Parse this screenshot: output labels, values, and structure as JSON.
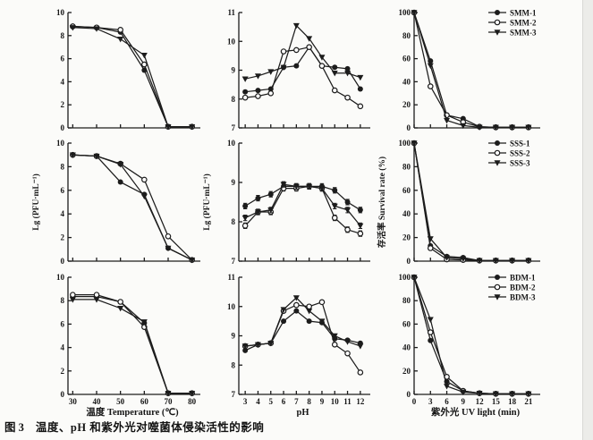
{
  "figure": {
    "caption": {
      "label": "图 3",
      "text": "温度、pH 和紫外光对噬菌体侵染活性的影响"
    }
  },
  "style": {
    "ink": "#1c1c1c",
    "paper": "#fbfbf9",
    "edge": "#ecece9"
  },
  "chart_data": [
    {
      "id": "smm-temperature",
      "type": "line",
      "row": 0,
      "col": 0,
      "x": [
        30,
        40,
        50,
        60,
        70,
        80
      ],
      "xlim": [
        28,
        82
      ],
      "ylim": [
        0,
        10
      ],
      "yticks": [
        0,
        2,
        4,
        6,
        8,
        10
      ],
      "xticks": [
        30,
        40,
        50,
        60,
        70,
        80
      ],
      "show_xtick_labels": false,
      "xlabel": "",
      "ylabel": "",
      "series": [
        {
          "name": "SMM-1",
          "marker": "filled-circle",
          "values": [
            8.8,
            8.7,
            8.3,
            5.0,
            0.1,
            0.1
          ]
        },
        {
          "name": "SMM-2",
          "marker": "open-circle",
          "values": [
            8.8,
            8.7,
            8.5,
            5.5,
            0.1,
            0.1
          ]
        },
        {
          "name": "SMM-3",
          "marker": "filled-triangle",
          "values": [
            8.7,
            8.6,
            7.7,
            6.3,
            0.1,
            0.1
          ]
        }
      ],
      "legend": false
    },
    {
      "id": "smm-ph",
      "type": "line",
      "row": 0,
      "col": 1,
      "x": [
        3,
        4,
        5,
        6,
        7,
        8,
        9,
        10,
        11,
        12
      ],
      "xlim": [
        2.5,
        12.5
      ],
      "ylim": [
        7,
        11
      ],
      "yticks": [
        7,
        8,
        9,
        10,
        11
      ],
      "xticks": [
        3,
        4,
        5,
        6,
        7,
        8,
        9,
        10,
        11,
        12
      ],
      "show_xtick_labels": false,
      "xlabel": "",
      "ylabel": "",
      "series": [
        {
          "name": "SMM-1",
          "marker": "filled-circle",
          "values": [
            8.25,
            8.3,
            8.35,
            9.1,
            9.15,
            9.8,
            9.15,
            9.1,
            9.05,
            8.35
          ]
        },
        {
          "name": "SMM-2",
          "marker": "open-circle",
          "values": [
            8.05,
            8.1,
            8.2,
            9.65,
            9.7,
            9.8,
            9.15,
            8.3,
            8.05,
            7.75
          ]
        },
        {
          "name": "SMM-3",
          "marker": "filled-triangle",
          "values": [
            8.7,
            8.8,
            8.95,
            9.1,
            10.55,
            10.1,
            9.45,
            8.9,
            8.9,
            8.75
          ]
        }
      ],
      "legend": false
    },
    {
      "id": "smm-uv",
      "type": "line",
      "row": 0,
      "col": 2,
      "x": [
        0,
        3,
        6,
        9,
        12,
        15,
        18,
        21
      ],
      "xlim": [
        0,
        22.5
      ],
      "ylim": [
        0,
        100
      ],
      "yticks": [
        0,
        20,
        40,
        60,
        80,
        100
      ],
      "xticks": [
        0,
        3,
        6,
        9,
        12,
        15,
        18,
        21
      ],
      "show_xtick_labels": false,
      "xlabel": "",
      "ylabel": "",
      "series": [
        {
          "name": "SMM-1",
          "marker": "filled-circle",
          "values": [
            100,
            58,
            11,
            8,
            1,
            0.5,
            0.5,
            0.5
          ]
        },
        {
          "name": "SMM-2",
          "marker": "open-circle",
          "values": [
            100,
            36,
            11,
            5,
            1,
            0.5,
            0.5,
            0.5
          ]
        },
        {
          "name": "SMM-3",
          "marker": "filled-triangle",
          "values": [
            100,
            54,
            6.5,
            2,
            0.5,
            0.5,
            0.5,
            0.5
          ]
        }
      ],
      "legend": true
    },
    {
      "id": "sss-temperature",
      "type": "line",
      "row": 1,
      "col": 0,
      "x": [
        30,
        40,
        50,
        60,
        70,
        80
      ],
      "xlim": [
        28,
        82
      ],
      "ylim": [
        0,
        10
      ],
      "yticks": [
        0,
        2,
        4,
        6,
        8,
        10
      ],
      "xticks": [
        30,
        40,
        50,
        60,
        70,
        80
      ],
      "show_xtick_labels": false,
      "xlabel": "",
      "ylabel": "Lg (PFU·mL⁻¹)",
      "series": [
        {
          "name": "SSS-1",
          "marker": "filled-circle",
          "values": [
            9.0,
            8.9,
            6.7,
            5.65,
            1.1,
            0.1
          ]
        },
        {
          "name": "SSS-2",
          "marker": "open-circle",
          "values": [
            9.0,
            8.9,
            8.25,
            6.9,
            2.1,
            0.1
          ]
        },
        {
          "name": "SSS-3",
          "marker": "filled-triangle",
          "values": [
            9.0,
            8.9,
            8.2,
            5.5,
            1.1,
            0.1
          ]
        }
      ],
      "legend": false
    },
    {
      "id": "sss-ph",
      "type": "line",
      "row": 1,
      "col": 1,
      "x": [
        3,
        4,
        5,
        6,
        7,
        8,
        9,
        10,
        11,
        12
      ],
      "xlim": [
        2.5,
        12.5
      ],
      "ylim": [
        7,
        10
      ],
      "yticks": [
        7,
        8,
        9,
        10
      ],
      "xticks": [
        3,
        4,
        5,
        6,
        7,
        8,
        9,
        10,
        11,
        12
      ],
      "show_xtick_labels": false,
      "xlabel": "",
      "ylabel": "Lg (PFU·mL⁻¹)",
      "yerr": 0.07,
      "series": [
        {
          "name": "SSS-1",
          "marker": "filled-circle",
          "values": [
            8.4,
            8.6,
            8.7,
            8.9,
            8.9,
            8.9,
            8.9,
            8.8,
            8.5,
            8.3
          ]
        },
        {
          "name": "SSS-2",
          "marker": "open-circle",
          "values": [
            7.9,
            8.25,
            8.25,
            8.85,
            8.85,
            8.9,
            8.85,
            8.1,
            7.8,
            7.7
          ]
        },
        {
          "name": "SSS-3",
          "marker": "filled-triangle",
          "values": [
            8.1,
            8.25,
            8.3,
            8.95,
            8.9,
            8.9,
            8.85,
            8.4,
            8.3,
            7.9
          ]
        }
      ],
      "legend": false
    },
    {
      "id": "sss-uv",
      "type": "line",
      "row": 1,
      "col": 2,
      "x": [
        0,
        3,
        6,
        9,
        12,
        15,
        18,
        21
      ],
      "xlim": [
        0,
        22.5
      ],
      "ylim": [
        0,
        100
      ],
      "yticks": [
        0,
        20,
        40,
        60,
        80,
        100
      ],
      "xticks": [
        0,
        3,
        6,
        9,
        12,
        15,
        18,
        21
      ],
      "show_xtick_labels": false,
      "xlabel": "",
      "ylabel": "存活率 Survival rate (%)",
      "series": [
        {
          "name": "SSS-1",
          "marker": "filled-circle",
          "values": [
            100,
            13,
            4,
            3,
            0.5,
            0.5,
            0.5,
            0.5
          ]
        },
        {
          "name": "SSS-2",
          "marker": "open-circle",
          "values": [
            100,
            11,
            1.5,
            1,
            0.5,
            0.5,
            0.5,
            0.5
          ]
        },
        {
          "name": "SSS-3",
          "marker": "filled-triangle",
          "values": [
            100,
            19,
            3,
            2,
            0.5,
            0.5,
            0.5,
            0.5
          ]
        }
      ],
      "legend": true
    },
    {
      "id": "bdm-temperature",
      "type": "line",
      "row": 2,
      "col": 0,
      "x": [
        30,
        40,
        50,
        60,
        70,
        80
      ],
      "xlim": [
        28,
        82
      ],
      "ylim": [
        0,
        10
      ],
      "yticks": [
        0,
        2,
        4,
        6,
        8,
        10
      ],
      "xticks": [
        30,
        40,
        50,
        60,
        70,
        80
      ],
      "show_xtick_labels": true,
      "xlabel": "温度 Temperature (℃)",
      "ylabel": "",
      "series": [
        {
          "name": "BDM-1",
          "marker": "filled-circle",
          "values": [
            8.35,
            8.35,
            7.9,
            6.1,
            0.1,
            0.1
          ]
        },
        {
          "name": "BDM-2",
          "marker": "open-circle",
          "values": [
            8.5,
            8.5,
            7.9,
            5.75,
            0.1,
            0.1
          ]
        },
        {
          "name": "BDM-3",
          "marker": "filled-triangle",
          "values": [
            8.1,
            8.1,
            7.35,
            6.2,
            0.1,
            0.1
          ]
        }
      ],
      "legend": false
    },
    {
      "id": "bdm-ph",
      "type": "line",
      "row": 2,
      "col": 1,
      "x": [
        3,
        4,
        5,
        6,
        7,
        8,
        9,
        10,
        11,
        12
      ],
      "xlim": [
        2.5,
        12.5
      ],
      "ylim": [
        7,
        11
      ],
      "yticks": [
        7,
        8,
        9,
        10,
        11
      ],
      "xticks": [
        3,
        4,
        5,
        6,
        7,
        8,
        9,
        10,
        11,
        12
      ],
      "show_xtick_labels": true,
      "xlabel": "pH",
      "ylabel": "",
      "series": [
        {
          "name": "BDM-1",
          "marker": "filled-circle",
          "values": [
            8.5,
            8.7,
            8.75,
            9.5,
            9.85,
            9.5,
            9.45,
            8.9,
            8.85,
            8.75
          ]
        },
        {
          "name": "BDM-2",
          "marker": "open-circle",
          "values": [
            8.65,
            8.7,
            8.75,
            9.85,
            10.05,
            10.0,
            10.15,
            8.7,
            8.4,
            7.75
          ]
        },
        {
          "name": "BDM-3",
          "marker": "filled-triangle",
          "values": [
            8.65,
            8.7,
            8.75,
            9.9,
            10.3,
            9.85,
            9.5,
            9.0,
            8.8,
            8.65
          ]
        }
      ],
      "legend": false
    },
    {
      "id": "bdm-uv",
      "type": "line",
      "row": 2,
      "col": 2,
      "x": [
        0,
        3,
        6,
        9,
        12,
        15,
        18,
        21
      ],
      "xlim": [
        0,
        22.5
      ],
      "ylim": [
        0,
        100
      ],
      "yticks": [
        0,
        20,
        40,
        60,
        80,
        100
      ],
      "xticks": [
        0,
        3,
        6,
        9,
        12,
        15,
        18,
        21
      ],
      "show_xtick_labels": true,
      "xlabel": "紫外光 UV light (min)",
      "ylabel": "",
      "series": [
        {
          "name": "BDM-1",
          "marker": "filled-circle",
          "values": [
            100,
            46,
            11,
            3,
            1,
            0.5,
            0.5,
            0.5
          ]
        },
        {
          "name": "BDM-2",
          "marker": "open-circle",
          "values": [
            100,
            53,
            15,
            3,
            1,
            0.5,
            0.5,
            0.5
          ]
        },
        {
          "name": "BDM-3",
          "marker": "filled-triangle",
          "values": [
            100,
            64,
            7,
            2,
            1,
            0.5,
            0.5,
            0.5
          ]
        }
      ],
      "legend": true
    }
  ]
}
